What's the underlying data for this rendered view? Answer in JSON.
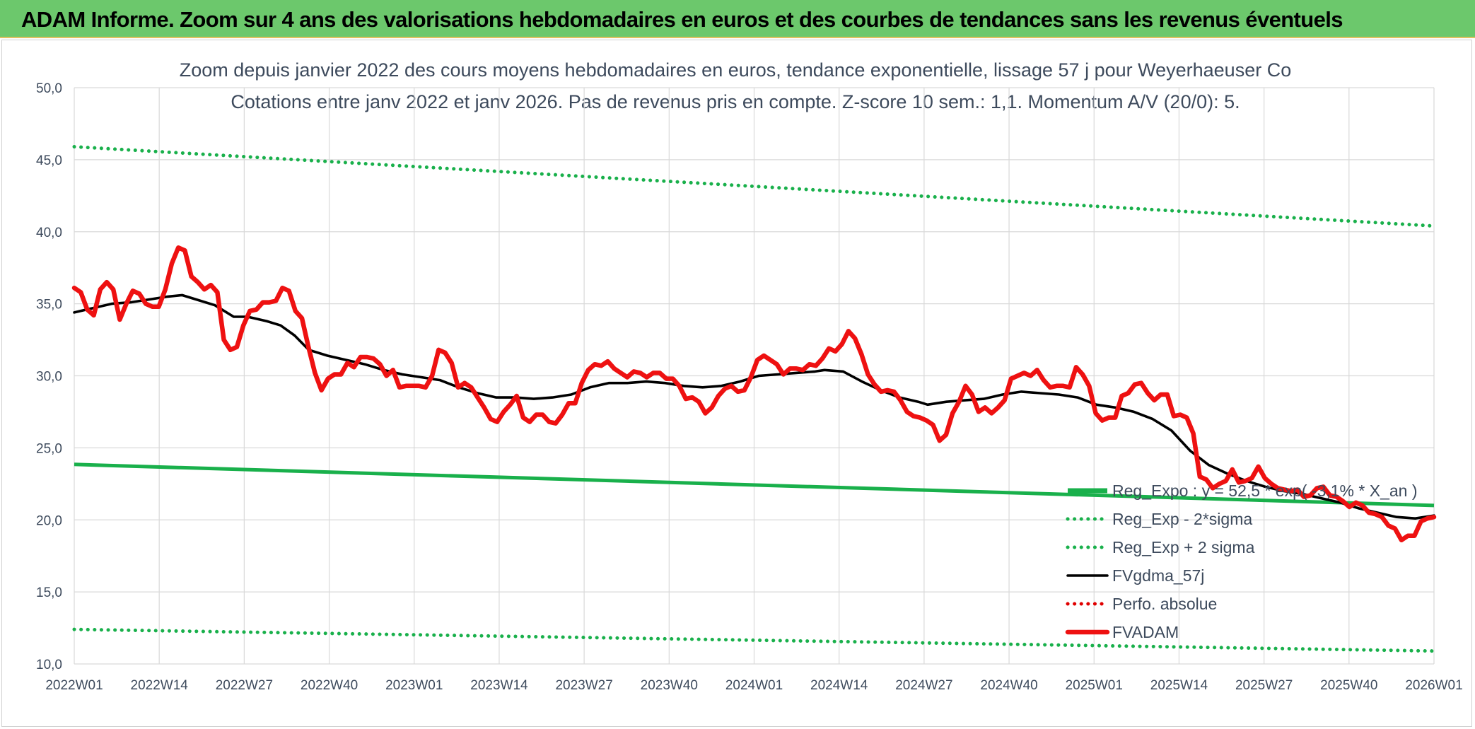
{
  "banner": {
    "title": "ADAM Informe. Zoom sur 4 ans des valorisations hebdomadaires en euros et des courbes de tendances sans les revenus éventuels"
  },
  "colors": {
    "banner_bg": "#6cc86c",
    "reg_expo": "#19b04b",
    "bands": "#19b04b",
    "fvgdma": "#000000",
    "perfo": "#e00000",
    "fvadam": "#ee1111",
    "grid": "#d9d9d9",
    "text": "#3d4a5c"
  },
  "chart_data": {
    "type": "line",
    "title": "Zoom depuis janvier 2022 des cours moyens hebdomadaires en euros, tendance exponentielle, lissage 57 j pour Weyerhaeuser Co",
    "subtitle": "Cotations entre janv 2022 et janv 2026. Pas de revenus pris en compte. Z-score 10 sem.: 1,1. Momentum A/V (20/0): 5.",
    "xlabel": "",
    "ylabel": "",
    "ylim": [
      10,
      50
    ],
    "yticks": [
      "10,0",
      "15,0",
      "20,0",
      "25,0",
      "30,0",
      "35,0",
      "40,0",
      "45,0",
      "50,0"
    ],
    "x_tick_labels": [
      "2022W01",
      "2022W14",
      "2022W27",
      "2022W40",
      "2023W01",
      "2023W14",
      "2023W27",
      "2023W40",
      "2024W01",
      "2024W14",
      "2024W27",
      "2024W40",
      "2025W01",
      "2025W14",
      "2025W27",
      "2025W40",
      "2026W01"
    ],
    "x_range_weeks": [
      0,
      209
    ],
    "grid": true,
    "legend_position": "bottom-right",
    "series": [
      {
        "name": "Reg_Expo : y = 52,5 * exp( -3,1% *  X_an )",
        "style": "solid-thick",
        "color": "#19b04b",
        "points": [
          [
            0,
            23.85
          ],
          [
            209,
            21.0
          ]
        ]
      },
      {
        "name": "Reg_Exp - 2*sigma",
        "style": "dotted",
        "color": "#19b04b",
        "points": [
          [
            0,
            12.4
          ],
          [
            209,
            10.9
          ]
        ]
      },
      {
        "name": "Reg_Exp + 2 sigma",
        "style": "dotted",
        "color": "#19b04b",
        "points": [
          [
            0,
            45.9
          ],
          [
            209,
            40.4
          ]
        ]
      },
      {
        "name": "FVgdma_57j",
        "style": "solid",
        "color": "#000000",
        "points": [
          [
            0,
            34.4
          ],
          [
            4,
            34.7
          ],
          [
            8,
            35.0
          ],
          [
            12,
            35.1
          ],
          [
            16,
            35.3
          ],
          [
            20,
            35.5
          ],
          [
            23,
            35.6
          ],
          [
            26,
            35.3
          ],
          [
            30,
            34.9
          ],
          [
            34,
            34.1
          ],
          [
            37,
            34.1
          ],
          [
            41,
            33.8
          ],
          [
            44,
            33.5
          ],
          [
            47,
            32.8
          ],
          [
            50,
            31.8
          ],
          [
            54,
            31.4
          ],
          [
            58,
            31.1
          ],
          [
            62,
            30.8
          ],
          [
            66,
            30.4
          ],
          [
            70,
            30.1
          ],
          [
            74,
            29.9
          ],
          [
            78,
            29.7
          ],
          [
            82,
            29.2
          ],
          [
            86,
            28.8
          ],
          [
            90,
            28.5
          ],
          [
            94,
            28.5
          ],
          [
            98,
            28.4
          ],
          [
            102,
            28.5
          ],
          [
            106,
            28.7
          ],
          [
            110,
            29.2
          ],
          [
            114,
            29.5
          ],
          [
            118,
            29.5
          ],
          [
            122,
            29.6
          ],
          [
            126,
            29.5
          ],
          [
            130,
            29.3
          ],
          [
            134,
            29.2
          ],
          [
            138,
            29.3
          ],
          [
            142,
            29.6
          ],
          [
            146,
            30.0
          ],
          [
            150,
            30.1
          ],
          [
            154,
            30.2
          ],
          [
            158,
            30.3
          ],
          [
            160,
            30.4
          ],
          [
            164,
            30.3
          ],
          [
            168,
            29.6
          ],
          [
            172,
            29.0
          ],
          [
            176,
            28.5
          ],
          [
            180,
            28.2
          ],
          [
            182,
            28.0
          ],
          [
            186,
            28.2
          ],
          [
            190,
            28.3
          ],
          [
            194,
            28.4
          ],
          [
            198,
            28.7
          ],
          [
            202,
            28.9
          ],
          [
            206,
            28.8
          ],
          [
            210,
            28.7
          ],
          [
            214,
            28.5
          ],
          [
            218,
            28.0
          ],
          [
            222,
            27.8
          ],
          [
            226,
            27.5
          ],
          [
            230,
            27.0
          ],
          [
            234,
            26.2
          ],
          [
            238,
            24.8
          ],
          [
            242,
            23.8
          ],
          [
            246,
            23.2
          ],
          [
            250,
            22.7
          ],
          [
            254,
            22.3
          ],
          [
            258,
            22.0
          ],
          [
            262,
            21.8
          ],
          [
            266,
            21.5
          ],
          [
            270,
            21.2
          ],
          [
            274,
            20.8
          ],
          [
            278,
            20.5
          ],
          [
            282,
            20.2
          ],
          [
            286,
            20.1
          ],
          [
            290,
            20.3
          ]
        ]
      },
      {
        "name": "Perfo. absolue",
        "style": "dotted",
        "color": "#e00000",
        "points": []
      },
      {
        "name": "FVADAM",
        "style": "solid-thick",
        "color": "#ee1111",
        "points": [
          [
            0,
            36.1
          ],
          [
            1,
            35.8
          ],
          [
            2,
            34.6
          ],
          [
            3,
            34.2
          ],
          [
            4,
            36.0
          ],
          [
            5,
            36.5
          ],
          [
            6,
            36.0
          ],
          [
            7,
            33.9
          ],
          [
            8,
            35.0
          ],
          [
            9,
            35.9
          ],
          [
            10,
            35.7
          ],
          [
            11,
            35.0
          ],
          [
            12,
            34.8
          ],
          [
            13,
            34.8
          ],
          [
            14,
            36.0
          ],
          [
            15,
            37.8
          ],
          [
            16,
            38.9
          ],
          [
            17,
            38.7
          ],
          [
            18,
            36.9
          ],
          [
            19,
            36.5
          ],
          [
            20,
            36.0
          ],
          [
            21,
            36.3
          ],
          [
            22,
            35.8
          ],
          [
            23,
            32.5
          ],
          [
            24,
            31.8
          ],
          [
            25,
            32.0
          ],
          [
            26,
            33.5
          ],
          [
            27,
            34.5
          ],
          [
            28,
            34.6
          ],
          [
            29,
            35.1
          ],
          [
            30,
            35.1
          ],
          [
            31,
            35.2
          ],
          [
            32,
            36.1
          ],
          [
            33,
            35.9
          ],
          [
            34,
            34.5
          ],
          [
            35,
            34.0
          ],
          [
            36,
            32.0
          ],
          [
            37,
            30.2
          ],
          [
            38,
            29.0
          ],
          [
            39,
            29.8
          ],
          [
            40,
            30.1
          ],
          [
            41,
            30.1
          ],
          [
            42,
            30.9
          ],
          [
            43,
            30.6
          ],
          [
            44,
            31.3
          ],
          [
            45,
            31.3
          ],
          [
            46,
            31.2
          ],
          [
            47,
            30.8
          ],
          [
            48,
            30.0
          ],
          [
            49,
            30.4
          ],
          [
            50,
            29.2
          ],
          [
            51,
            29.3
          ],
          [
            52,
            29.3
          ],
          [
            53,
            29.3
          ],
          [
            54,
            29.2
          ],
          [
            55,
            30.0
          ],
          [
            56,
            31.8
          ],
          [
            57,
            31.6
          ],
          [
            58,
            30.9
          ],
          [
            59,
            29.2
          ],
          [
            60,
            29.5
          ],
          [
            61,
            29.2
          ],
          [
            62,
            28.5
          ],
          [
            63,
            27.8
          ],
          [
            64,
            27.0
          ],
          [
            65,
            26.8
          ],
          [
            66,
            27.5
          ],
          [
            67,
            28.0
          ],
          [
            68,
            28.6
          ],
          [
            69,
            27.1
          ],
          [
            70,
            26.8
          ],
          [
            71,
            27.3
          ],
          [
            72,
            27.3
          ],
          [
            73,
            26.8
          ],
          [
            74,
            26.7
          ],
          [
            75,
            27.3
          ],
          [
            76,
            28.1
          ],
          [
            77,
            28.1
          ],
          [
            78,
            29.5
          ],
          [
            79,
            30.4
          ],
          [
            80,
            30.8
          ],
          [
            81,
            30.7
          ],
          [
            82,
            31.0
          ],
          [
            83,
            30.5
          ],
          [
            84,
            30.2
          ],
          [
            85,
            29.9
          ],
          [
            86,
            30.3
          ],
          [
            87,
            30.2
          ],
          [
            88,
            29.9
          ],
          [
            89,
            30.2
          ],
          [
            90,
            30.2
          ],
          [
            91,
            29.8
          ],
          [
            92,
            29.8
          ],
          [
            93,
            29.3
          ],
          [
            94,
            28.4
          ],
          [
            95,
            28.5
          ],
          [
            96,
            28.2
          ],
          [
            97,
            27.4
          ],
          [
            98,
            27.8
          ],
          [
            99,
            28.6
          ],
          [
            100,
            29.1
          ],
          [
            101,
            29.3
          ],
          [
            102,
            28.9
          ],
          [
            103,
            29.0
          ],
          [
            104,
            29.9
          ],
          [
            105,
            31.1
          ],
          [
            106,
            31.4
          ],
          [
            107,
            31.1
          ],
          [
            108,
            30.8
          ],
          [
            109,
            30.1
          ],
          [
            110,
            30.5
          ],
          [
            111,
            30.5
          ],
          [
            112,
            30.4
          ],
          [
            113,
            30.8
          ],
          [
            114,
            30.7
          ],
          [
            115,
            31.2
          ],
          [
            116,
            31.9
          ],
          [
            117,
            31.7
          ],
          [
            118,
            32.2
          ],
          [
            119,
            33.1
          ],
          [
            120,
            32.6
          ],
          [
            121,
            31.5
          ],
          [
            122,
            30.1
          ],
          [
            123,
            29.4
          ],
          [
            124,
            28.9
          ],
          [
            125,
            29.0
          ],
          [
            126,
            28.9
          ],
          [
            127,
            28.3
          ],
          [
            128,
            27.5
          ],
          [
            129,
            27.2
          ],
          [
            130,
            27.1
          ],
          [
            131,
            26.9
          ],
          [
            132,
            26.6
          ],
          [
            133,
            25.5
          ],
          [
            134,
            25.9
          ],
          [
            135,
            27.4
          ],
          [
            136,
            28.2
          ],
          [
            137,
            29.3
          ],
          [
            138,
            28.7
          ],
          [
            139,
            27.5
          ],
          [
            140,
            27.8
          ],
          [
            141,
            27.4
          ],
          [
            142,
            27.8
          ],
          [
            143,
            28.3
          ],
          [
            144,
            29.8
          ],
          [
            145,
            30.0
          ],
          [
            146,
            30.2
          ],
          [
            147,
            30.0
          ],
          [
            148,
            30.4
          ],
          [
            149,
            29.7
          ],
          [
            150,
            29.2
          ],
          [
            151,
            29.3
          ],
          [
            152,
            29.3
          ],
          [
            153,
            29.2
          ],
          [
            154,
            30.6
          ],
          [
            155,
            30.1
          ],
          [
            156,
            29.3
          ],
          [
            157,
            27.4
          ],
          [
            158,
            26.9
          ],
          [
            159,
            27.1
          ],
          [
            160,
            27.1
          ],
          [
            161,
            28.6
          ],
          [
            162,
            28.8
          ],
          [
            163,
            29.4
          ],
          [
            164,
            29.5
          ],
          [
            165,
            28.8
          ],
          [
            166,
            28.3
          ],
          [
            167,
            28.7
          ],
          [
            168,
            28.7
          ],
          [
            169,
            27.2
          ],
          [
            170,
            27.3
          ],
          [
            171,
            27.1
          ],
          [
            172,
            26.0
          ],
          [
            173,
            23.0
          ],
          [
            174,
            22.8
          ],
          [
            175,
            22.2
          ],
          [
            176,
            22.5
          ],
          [
            177,
            22.7
          ],
          [
            178,
            23.5
          ],
          [
            179,
            22.6
          ],
          [
            180,
            22.7
          ],
          [
            181,
            22.9
          ],
          [
            182,
            23.7
          ],
          [
            183,
            22.9
          ],
          [
            184,
            22.5
          ],
          [
            185,
            22.2
          ],
          [
            186,
            22.1
          ],
          [
            187,
            22.0
          ],
          [
            188,
            22.1
          ],
          [
            189,
            21.6
          ],
          [
            190,
            21.7
          ],
          [
            191,
            22.2
          ],
          [
            192,
            22.3
          ],
          [
            193,
            21.7
          ],
          [
            194,
            21.6
          ],
          [
            195,
            21.3
          ],
          [
            196,
            20.9
          ],
          [
            197,
            21.2
          ],
          [
            198,
            21.0
          ],
          [
            199,
            20.5
          ],
          [
            200,
            20.4
          ],
          [
            201,
            20.2
          ],
          [
            202,
            19.6
          ],
          [
            203,
            19.4
          ],
          [
            204,
            18.6
          ],
          [
            205,
            18.9
          ],
          [
            206,
            18.9
          ],
          [
            207,
            19.9
          ],
          [
            208,
            20.1
          ],
          [
            209,
            20.2
          ]
        ]
      }
    ]
  }
}
